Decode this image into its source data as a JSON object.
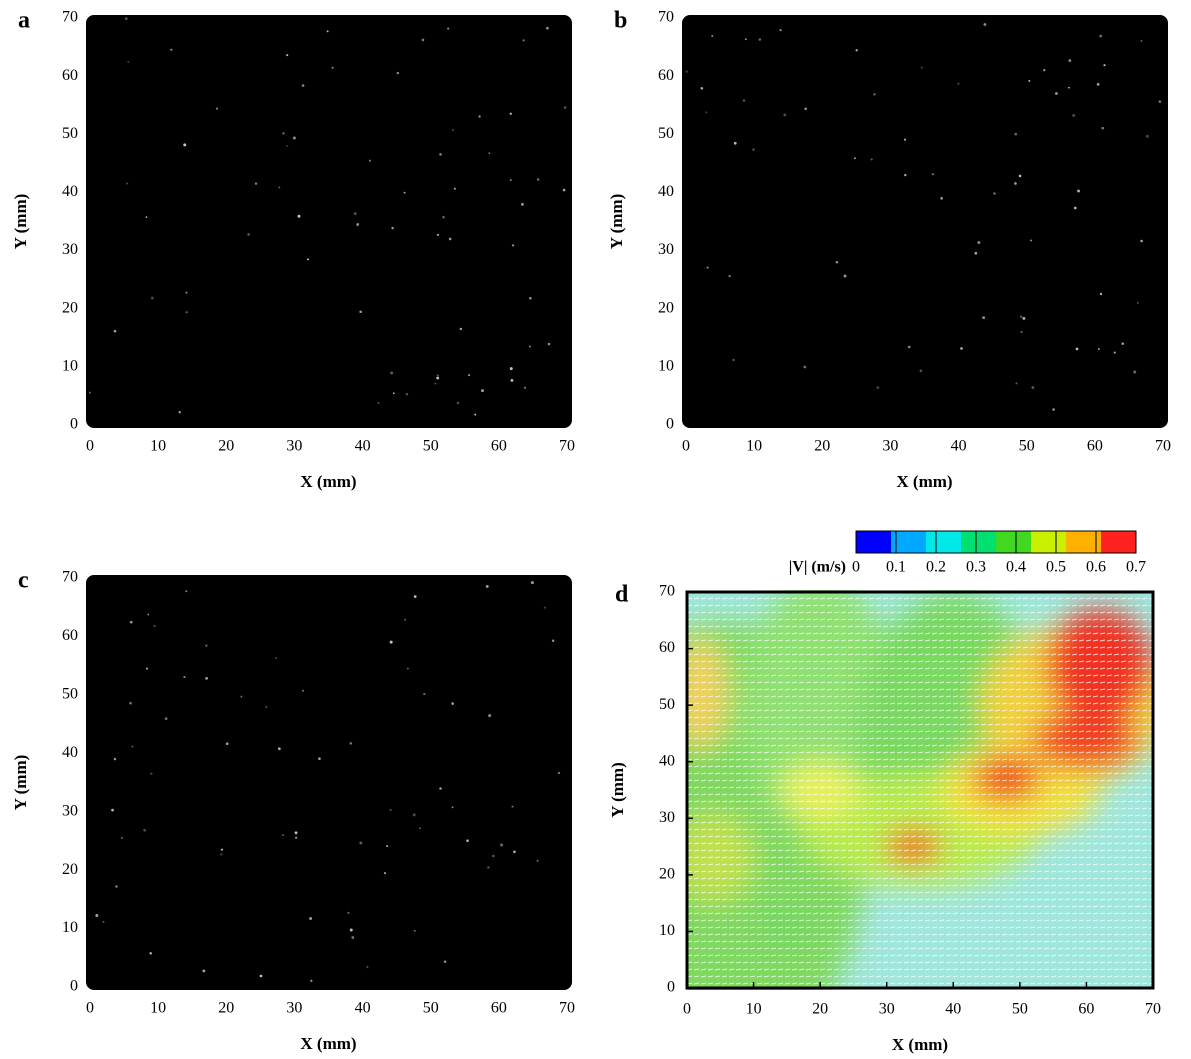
{
  "chart_data": [
    {
      "type": "image",
      "label": "a",
      "xlabel": "X (mm)",
      "ylabel": "Y (mm)",
      "xlim": [
        0,
        70
      ],
      "ylim": [
        0,
        70
      ],
      "xticks": [
        0,
        10,
        20,
        30,
        40,
        50,
        60,
        70
      ],
      "yticks": [
        0,
        10,
        20,
        30,
        40,
        50,
        60,
        70
      ]
    },
    {
      "type": "image",
      "label": "b",
      "xlabel": "X (mm)",
      "ylabel": "Y (mm)",
      "xlim": [
        0,
        70
      ],
      "ylim": [
        0,
        70
      ],
      "xticks": [
        0,
        10,
        20,
        30,
        40,
        50,
        60,
        70
      ],
      "yticks": [
        0,
        10,
        20,
        30,
        40,
        50,
        60,
        70
      ]
    },
    {
      "type": "image",
      "label": "c",
      "xlabel": "X (mm)",
      "ylabel": "Y (mm)",
      "xlim": [
        0,
        70
      ],
      "ylim": [
        0,
        70
      ],
      "xticks": [
        0,
        10,
        20,
        30,
        40,
        50,
        60,
        70
      ],
      "yticks": [
        0,
        10,
        20,
        30,
        40,
        50,
        60,
        70
      ]
    },
    {
      "type": "vector-field",
      "label": "d",
      "xlabel": "X (mm)",
      "ylabel": "Y (mm)",
      "xlim": [
        0,
        70
      ],
      "ylim": [
        0,
        70
      ],
      "xticks": [
        0,
        10,
        20,
        30,
        40,
        50,
        60,
        70
      ],
      "yticks": [
        0,
        10,
        20,
        30,
        40,
        50,
        60,
        70
      ],
      "colorbar": {
        "label": "|V| (m/s)",
        "lim": [
          0,
          0.7
        ],
        "ticks": [
          0,
          0.1,
          0.2,
          0.3,
          0.4,
          0.5,
          0.6,
          0.7
        ],
        "colors": [
          "#0000ff",
          "#00a8ff",
          "#00e8e8",
          "#00e070",
          "#40d820",
          "#c8f000",
          "#ffb000",
          "#ff2020"
        ]
      }
    }
  ]
}
